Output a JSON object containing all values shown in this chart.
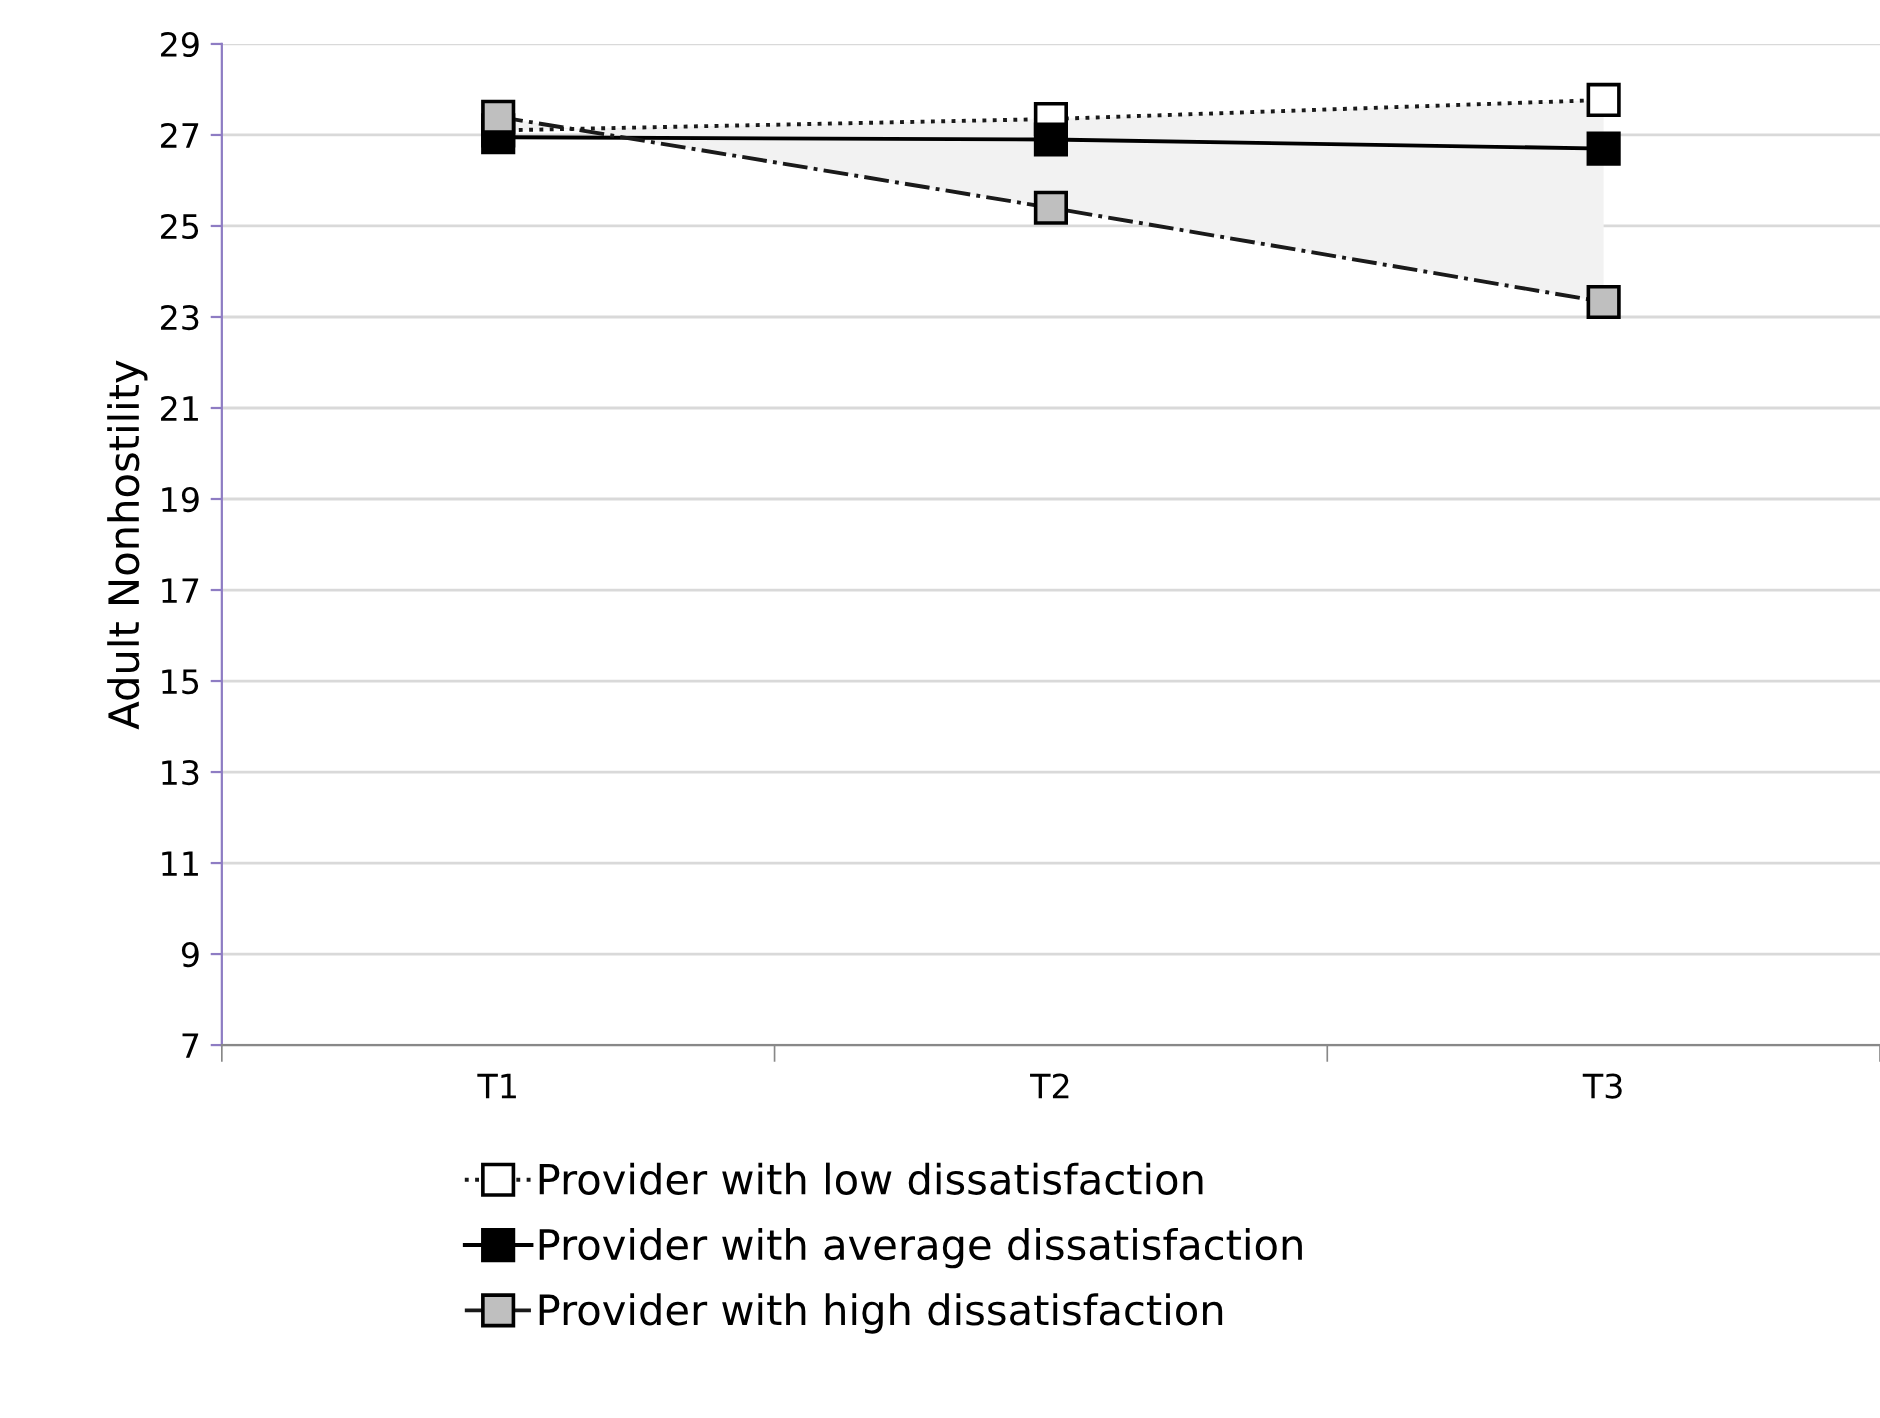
{
  "chart_data": {
    "type": "line",
    "ylabel": "Adult Nonhostility",
    "categories": [
      "T1",
      "T2",
      "T3"
    ],
    "series": [
      {
        "name": "Provider with low dissatisfaction",
        "color": "#ffffff",
        "line_style": "dotted",
        "values": [
          27.1,
          27.35,
          27.77
        ]
      },
      {
        "name": "Provider with average dissatisfaction",
        "color": "#000000",
        "line_style": "solid",
        "values": [
          26.95,
          26.9,
          26.7
        ],
        "lower": [
          27.4,
          25.4,
          23.33
        ],
        "upper": [
          27.1,
          27.35,
          27.77
        ]
      },
      {
        "name": "Provider with high dissatisfaction",
        "color": "#bfbfbf",
        "line_style": "dashdot",
        "values": [
          27.4,
          25.4,
          23.33
        ]
      }
    ],
    "ylim": [
      7,
      29
    ],
    "yticks": [
      7,
      9,
      11,
      13,
      15,
      17,
      19,
      21,
      23,
      25,
      27,
      29
    ],
    "grid": "y",
    "legend": "bottom",
    "marker": "square"
  }
}
